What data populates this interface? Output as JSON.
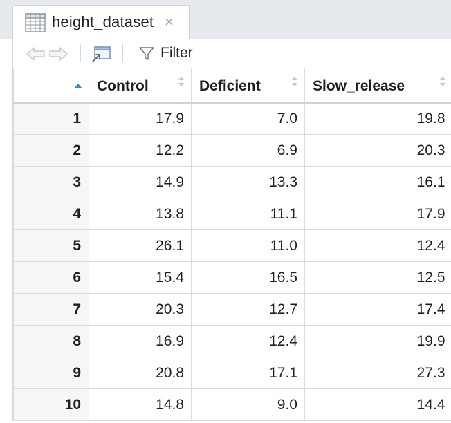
{
  "tab": {
    "title": "height_dataset",
    "close_glyph": "×",
    "icon": "table-grid-icon"
  },
  "toolbar": {
    "back_icon": "arrow-left-icon",
    "forward_icon": "arrow-right-icon",
    "popout_icon": "popout-window-icon",
    "filter_icon": "funnel-icon",
    "filter_label": "Filter"
  },
  "table": {
    "columns": [
      "Control",
      "Deficient",
      "Slow_release"
    ],
    "rows": [
      {
        "n": "1",
        "cells": [
          "17.9",
          "7.0",
          "19.8"
        ]
      },
      {
        "n": "2",
        "cells": [
          "12.2",
          "6.9",
          "20.3"
        ]
      },
      {
        "n": "3",
        "cells": [
          "14.9",
          "13.3",
          "16.1"
        ]
      },
      {
        "n": "4",
        "cells": [
          "13.8",
          "11.1",
          "17.9"
        ]
      },
      {
        "n": "5",
        "cells": [
          "26.1",
          "11.0",
          "12.4"
        ]
      },
      {
        "n": "6",
        "cells": [
          "15.4",
          "16.5",
          "12.5"
        ]
      },
      {
        "n": "7",
        "cells": [
          "20.3",
          "12.7",
          "17.4"
        ]
      },
      {
        "n": "8",
        "cells": [
          "16.9",
          "12.4",
          "19.9"
        ]
      },
      {
        "n": "9",
        "cells": [
          "20.8",
          "17.1",
          "27.3"
        ]
      },
      {
        "n": "10",
        "cells": [
          "14.8",
          "9.0",
          "14.4"
        ]
      }
    ]
  },
  "colors": {
    "sort_active": "#2f8ce0",
    "sort_inactive": "#c3c7cb",
    "row_header_bg": "#f4f6f8"
  }
}
